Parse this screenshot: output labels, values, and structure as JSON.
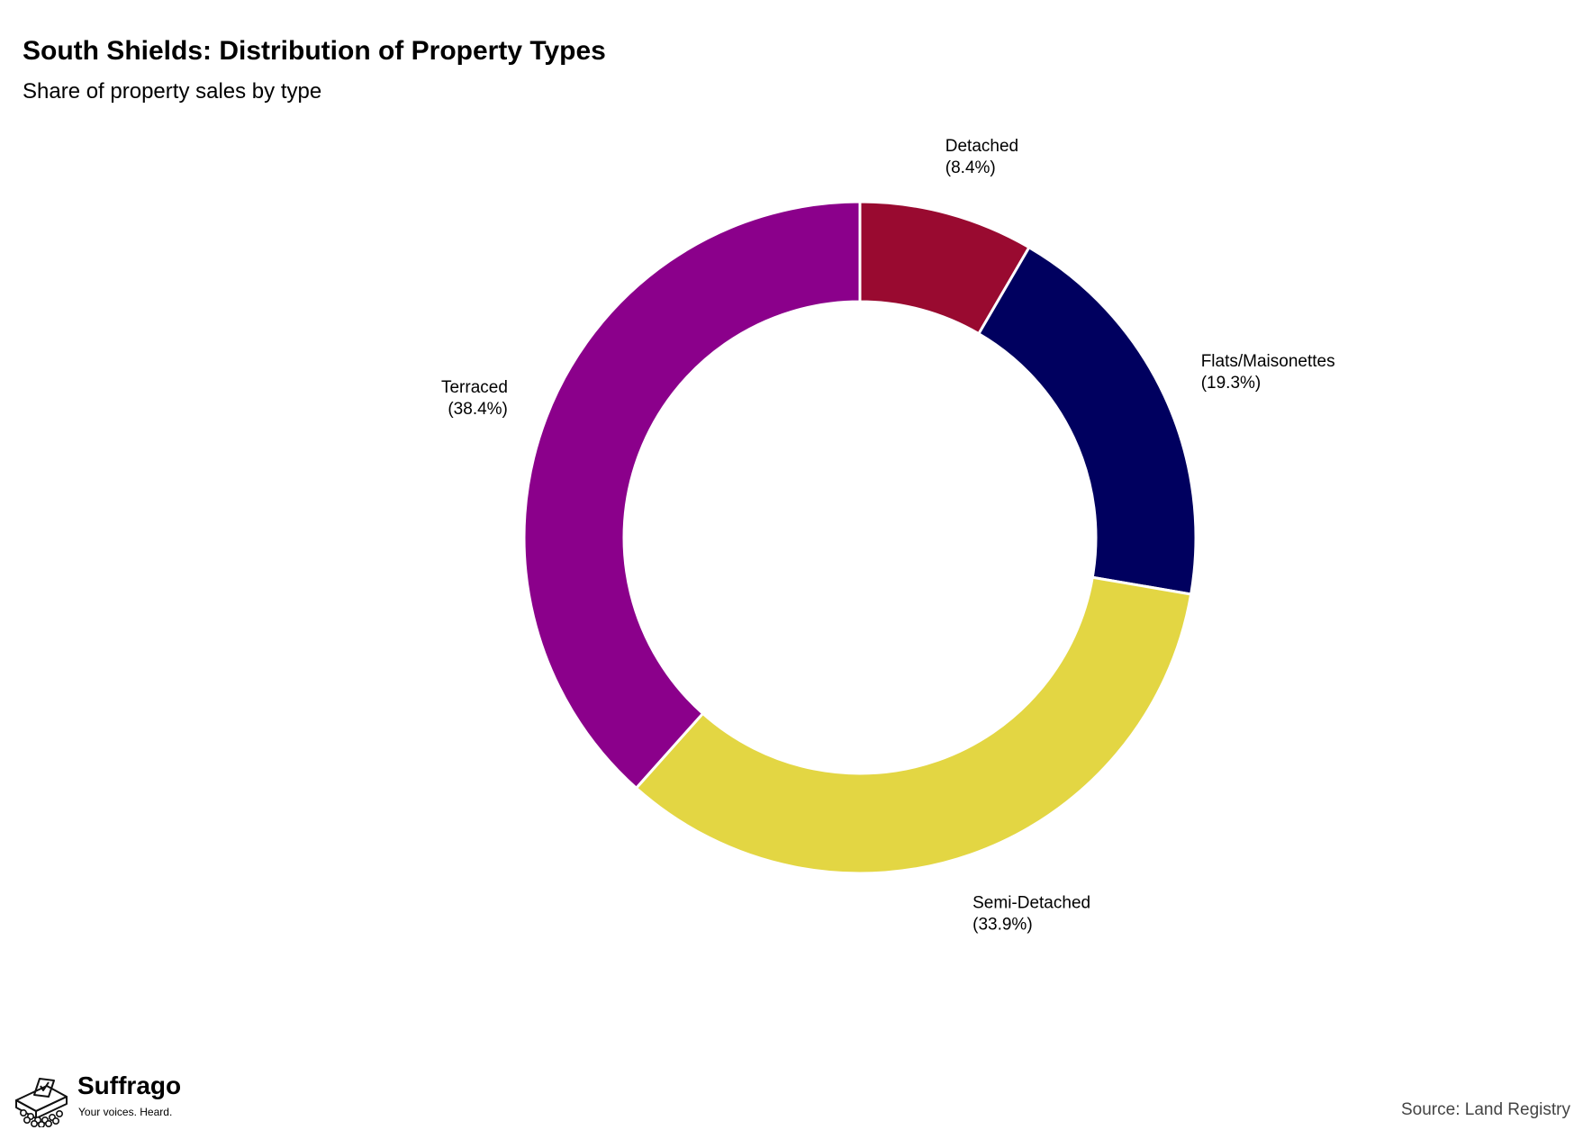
{
  "title": "South Shields: Distribution of Property Types",
  "subtitle": "Share of property sales by type",
  "source": "Source: Land Registry",
  "logo": {
    "name": "Suffrago",
    "tagline": "Your voices. Heard."
  },
  "chart_data": {
    "type": "pie",
    "style": "donut",
    "title": "South Shields: Distribution of Property Types",
    "subtitle": "Share of property sales by type",
    "start": "12 o'clock, clockwise",
    "slices": [
      {
        "label": "Detached",
        "value": 8.4,
        "display": "(8.4%)",
        "color": "#990a30"
      },
      {
        "label": "Flats/Maisonettes",
        "value": 19.3,
        "display": "(19.3%)",
        "color": "#00005f"
      },
      {
        "label": "Semi-Detached",
        "value": 33.9,
        "display": "(33.9%)",
        "color": "#e3d643"
      },
      {
        "label": "Terraced",
        "value": 38.4,
        "display": "(38.4%)",
        "color": "#8b008b"
      }
    ]
  }
}
